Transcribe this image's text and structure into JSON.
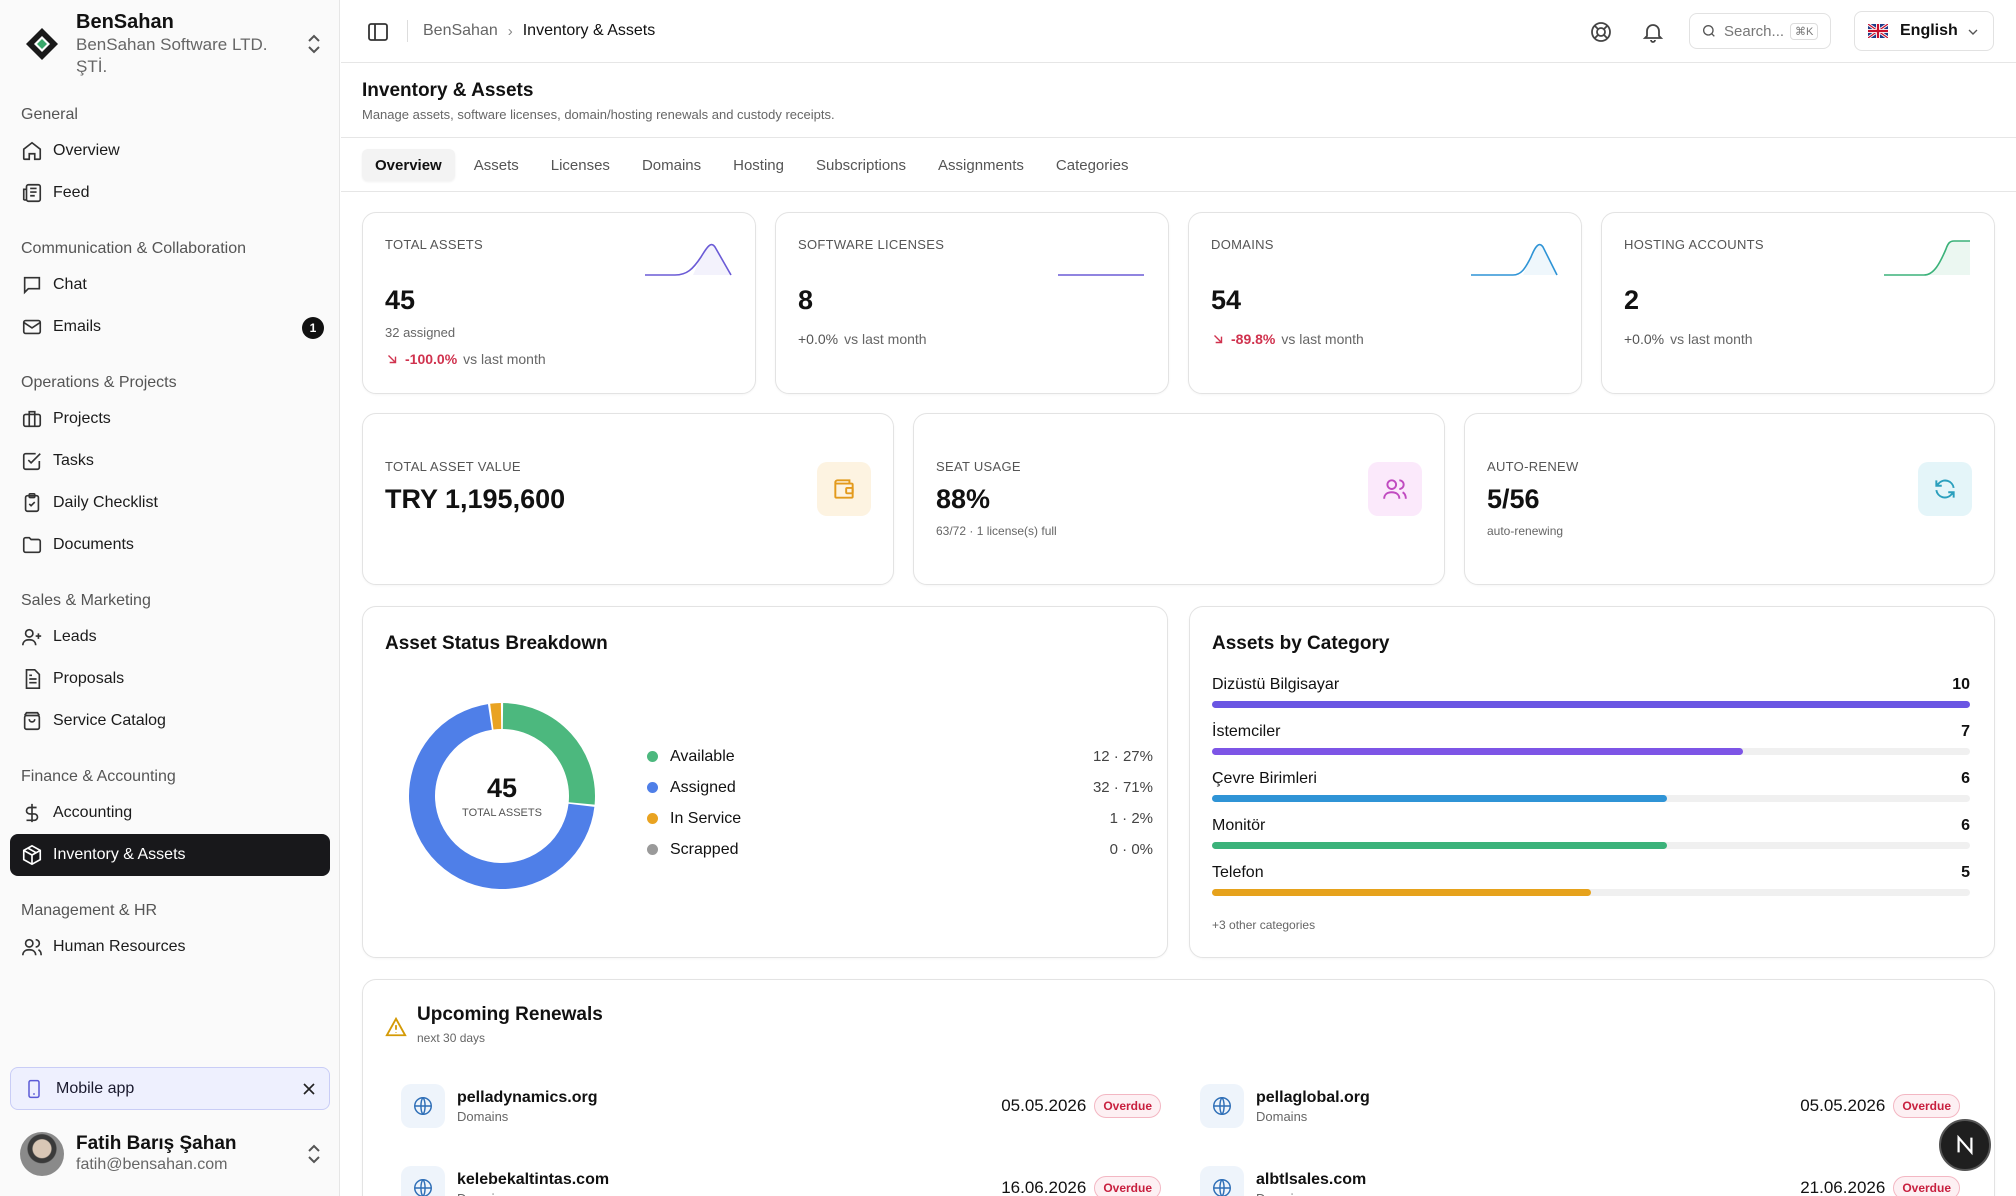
{
  "brand": {
    "name": "BenSahan",
    "company": "BenSahan Software LTD. ŞTİ."
  },
  "nav": {
    "general": {
      "title": "General",
      "overview": "Overview",
      "feed": "Feed"
    },
    "comm": {
      "title": "Communication & Collaboration",
      "chat": "Chat",
      "emails": "Emails",
      "emails_badge": "1"
    },
    "ops": {
      "title": "Operations & Projects",
      "projects": "Projects",
      "tasks": "Tasks",
      "checklist": "Daily Checklist",
      "documents": "Documents"
    },
    "sales": {
      "title": "Sales & Marketing",
      "leads": "Leads",
      "proposals": "Proposals",
      "catalog": "Service Catalog"
    },
    "finance": {
      "title": "Finance & Accounting",
      "accounting": "Accounting",
      "inventory": "Inventory & Assets"
    },
    "hr": {
      "title": "Management & HR",
      "human": "Human Resources"
    }
  },
  "mobile_app": {
    "label": "Mobile app"
  },
  "user": {
    "name": "Fatih Barış Şahan",
    "email": "fatih@bensahan.com"
  },
  "breadcrumb": {
    "root": "BenSahan",
    "sep": "›",
    "current": "Inventory & Assets"
  },
  "search": {
    "placeholder": "Search...",
    "shortcut": "⌘K"
  },
  "language": {
    "label": "English"
  },
  "page": {
    "title": "Inventory & Assets",
    "subtitle": "Manage assets, software licenses, domain/hosting renewals and custody receipts."
  },
  "tabs": [
    "Overview",
    "Assets",
    "Licenses",
    "Domains",
    "Hosting",
    "Subscriptions",
    "Assignments",
    "Categories"
  ],
  "stats": {
    "assets": {
      "label": "TOTAL ASSETS",
      "value": "45",
      "sub": "32 assigned",
      "change": "-100.0%",
      "vs": "vs last month"
    },
    "licenses": {
      "label": "SOFTWARE LICENSES",
      "value": "8",
      "change": "+0.0%",
      "vs": "vs last month"
    },
    "domains": {
      "label": "DOMAINS",
      "value": "54",
      "change": "-89.8%",
      "vs": "vs last month"
    },
    "hosting": {
      "label": "HOSTING ACCOUNTS",
      "value": "2",
      "change": "+0.0%",
      "vs": "vs last month"
    }
  },
  "summary": {
    "value": {
      "label": "TOTAL ASSET VALUE",
      "value": "TRY 1,195,600"
    },
    "seats": {
      "label": "SEAT USAGE",
      "value": "88%",
      "sub": "63/72 · 1 license(s) full"
    },
    "renew": {
      "label": "AUTO-RENEW",
      "value": "5/56",
      "sub": "auto-renewing"
    }
  },
  "status": {
    "title": "Asset Status Breakdown",
    "total": "45",
    "total_label": "TOTAL ASSETS",
    "items": [
      {
        "name": "Available",
        "value": "12 · 27%",
        "count": 12,
        "color": "#4cb87e"
      },
      {
        "name": "Assigned",
        "value": "32 · 71%",
        "count": 32,
        "color": "#4f7fe8"
      },
      {
        "name": "In Service",
        "value": "1 · 2%",
        "count": 1,
        "color": "#e9a321"
      },
      {
        "name": "Scrapped",
        "value": "0 · 0%",
        "count": 0,
        "color": "#9a9a9a"
      }
    ]
  },
  "categories": {
    "title": "Assets by Category",
    "items": [
      {
        "name": "Dizüstü Bilgisayar",
        "count": "10",
        "share": 1.0,
        "color": "#6a56e3"
      },
      {
        "name": "İstemciler",
        "count": "7",
        "share": 0.7,
        "color": "#7d55e6"
      },
      {
        "name": "Çevre Birimleri",
        "count": "6",
        "share": 0.6,
        "color": "#2f94d6"
      },
      {
        "name": "Monitör",
        "count": "6",
        "share": 0.6,
        "color": "#3bb27a"
      },
      {
        "name": "Telefon",
        "count": "5",
        "share": 0.5,
        "color": "#e6a21c"
      }
    ],
    "more": "+3 other categories"
  },
  "renewals": {
    "title": "Upcoming Renewals",
    "subtitle": "next 30 days",
    "items": [
      {
        "name": "pelladynamics.org",
        "type": "Domains",
        "date": "05.05.2026",
        "status": "Overdue"
      },
      {
        "name": "pellaglobal.org",
        "type": "Domains",
        "date": "05.05.2026",
        "status": "Overdue"
      },
      {
        "name": "kelebekaltintas.com",
        "type": "Domains",
        "date": "16.06.2026",
        "status": "Overdue"
      },
      {
        "name": "albtlsales.com",
        "type": "Domains",
        "date": "21.06.2026",
        "status": "Overdue"
      }
    ]
  },
  "colors": {
    "accent": "#18181b",
    "negative": "#d0324e",
    "warning": "#d49a06"
  }
}
